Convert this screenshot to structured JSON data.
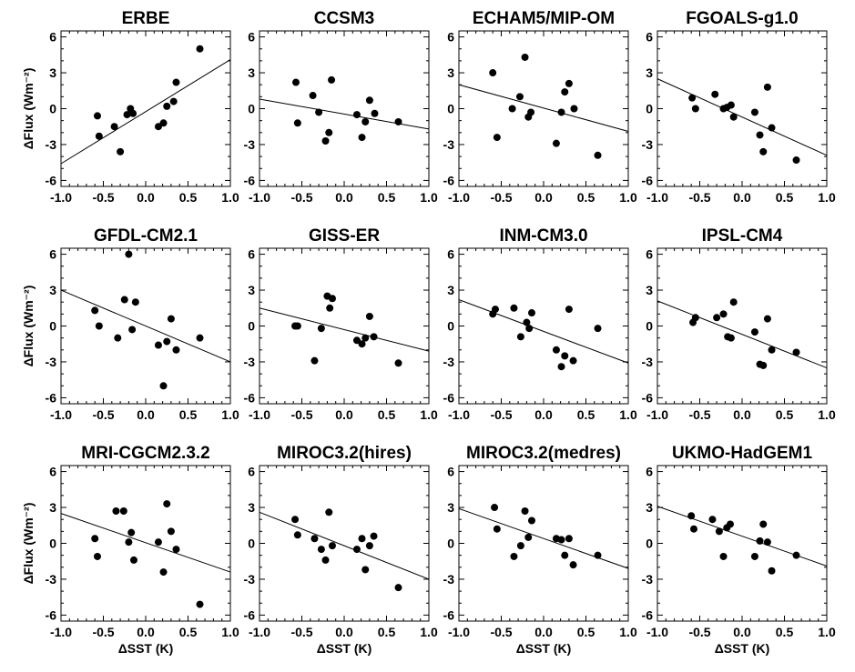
{
  "figure": {
    "xlabel": "ΔSST (K)",
    "ylabel": "ΔFlux (Wm⁻²)",
    "xticks": [
      "-1.0",
      "-0.5",
      "0.0",
      "0.5",
      "1.0"
    ],
    "yticks": [
      "6",
      "3",
      "0",
      "-3",
      "-6"
    ]
  },
  "chart_data": [
    {
      "type": "scatter",
      "title": "ERBE",
      "xlim": [
        -1,
        1
      ],
      "ylim": [
        -6.5,
        6.5
      ],
      "fit": [
        [
          -1,
          -4.6
        ],
        [
          1,
          4.1
        ]
      ],
      "points": [
        [
          -0.57,
          -0.6
        ],
        [
          -0.55,
          -2.3
        ],
        [
          -0.37,
          -1.5
        ],
        [
          -0.3,
          -3.6
        ],
        [
          -0.22,
          -0.5
        ],
        [
          -0.18,
          0.0
        ],
        [
          -0.15,
          -0.4
        ],
        [
          0.15,
          -1.5
        ],
        [
          0.21,
          -1.2
        ],
        [
          0.25,
          0.2
        ],
        [
          0.33,
          0.6
        ],
        [
          0.36,
          2.2
        ],
        [
          0.64,
          5.0
        ]
      ]
    },
    {
      "type": "scatter",
      "title": "CCSM3",
      "xlim": [
        -1,
        1
      ],
      "ylim": [
        -6.5,
        6.5
      ],
      "fit": [
        [
          -1,
          0.8
        ],
        [
          1,
          -1.7
        ]
      ],
      "points": [
        [
          -0.57,
          2.2
        ],
        [
          -0.55,
          -1.2
        ],
        [
          -0.37,
          1.1
        ],
        [
          -0.3,
          -0.3
        ],
        [
          -0.22,
          -2.7
        ],
        [
          -0.18,
          -2.0
        ],
        [
          -0.15,
          2.4
        ],
        [
          0.15,
          -0.5
        ],
        [
          0.21,
          -2.4
        ],
        [
          0.25,
          -1.1
        ],
        [
          0.3,
          0.7
        ],
        [
          0.36,
          -0.4
        ],
        [
          0.64,
          -1.1
        ]
      ]
    },
    {
      "type": "scatter",
      "title": "ECHAM5/MIP-OM",
      "xlim": [
        -1,
        1
      ],
      "ylim": [
        -6.5,
        6.5
      ],
      "fit": [
        [
          -1,
          2.0
        ],
        [
          1,
          -1.9
        ]
      ],
      "points": [
        [
          -0.6,
          3.0
        ],
        [
          -0.55,
          -2.4
        ],
        [
          -0.37,
          0.0
        ],
        [
          -0.28,
          1.0
        ],
        [
          -0.22,
          4.3
        ],
        [
          -0.18,
          -0.7
        ],
        [
          -0.15,
          -0.3
        ],
        [
          0.15,
          -2.9
        ],
        [
          0.21,
          -0.3
        ],
        [
          0.25,
          1.4
        ],
        [
          0.3,
          2.1
        ],
        [
          0.36,
          0.0
        ],
        [
          0.64,
          -3.9
        ]
      ]
    },
    {
      "type": "scatter",
      "title": "FGOALS-g1.0",
      "xlim": [
        -1,
        1
      ],
      "ylim": [
        -6.5,
        6.5
      ],
      "fit": [
        [
          -1,
          2.5
        ],
        [
          1,
          -3.9
        ]
      ],
      "points": [
        [
          -0.59,
          0.9
        ],
        [
          -0.55,
          0.0
        ],
        [
          -0.32,
          1.2
        ],
        [
          -0.22,
          0.0
        ],
        [
          -0.18,
          0.1
        ],
        [
          -0.13,
          0.3
        ],
        [
          -0.1,
          -0.7
        ],
        [
          0.15,
          -0.3
        ],
        [
          0.21,
          -2.2
        ],
        [
          0.25,
          -3.6
        ],
        [
          0.3,
          1.8
        ],
        [
          0.35,
          -1.6
        ],
        [
          0.64,
          -4.3
        ]
      ]
    },
    {
      "type": "scatter",
      "title": "GFDL-CM2.1",
      "xlim": [
        -1,
        1
      ],
      "ylim": [
        -6.5,
        6.5
      ],
      "fit": [
        [
          -1,
          3.0
        ],
        [
          1,
          -3.0
        ]
      ],
      "points": [
        [
          -0.6,
          1.3
        ],
        [
          -0.55,
          0.0
        ],
        [
          -0.33,
          -1.0
        ],
        [
          -0.25,
          2.2
        ],
        [
          -0.2,
          6.0
        ],
        [
          -0.16,
          -0.3
        ],
        [
          -0.12,
          2.0
        ],
        [
          0.15,
          -1.6
        ],
        [
          0.21,
          -5.0
        ],
        [
          0.25,
          -1.3
        ],
        [
          0.3,
          0.6
        ],
        [
          0.36,
          -2.0
        ],
        [
          0.64,
          -1.0
        ]
      ]
    },
    {
      "type": "scatter",
      "title": "GISS-ER",
      "xlim": [
        -1,
        1
      ],
      "ylim": [
        -6.5,
        6.5
      ],
      "fit": [
        [
          -1,
          1.5
        ],
        [
          1,
          -2.1
        ]
      ],
      "points": [
        [
          -0.58,
          0.0
        ],
        [
          -0.55,
          0.0
        ],
        [
          -0.35,
          -2.9
        ],
        [
          -0.27,
          -0.2
        ],
        [
          -0.2,
          2.5
        ],
        [
          -0.17,
          1.5
        ],
        [
          -0.14,
          2.3
        ],
        [
          0.15,
          -1.2
        ],
        [
          0.21,
          -1.5
        ],
        [
          0.25,
          -1.0
        ],
        [
          0.3,
          0.8
        ],
        [
          0.35,
          -0.9
        ],
        [
          0.64,
          -3.1
        ]
      ]
    },
    {
      "type": "scatter",
      "title": "INM-CM3.0",
      "xlim": [
        -1,
        1
      ],
      "ylim": [
        -6.5,
        6.5
      ],
      "fit": [
        [
          -1,
          2.2
        ],
        [
          1,
          -3.1
        ]
      ],
      "points": [
        [
          -0.6,
          1.0
        ],
        [
          -0.57,
          1.4
        ],
        [
          -0.35,
          1.5
        ],
        [
          -0.27,
          -0.9
        ],
        [
          -0.2,
          0.3
        ],
        [
          -0.17,
          -0.2
        ],
        [
          -0.14,
          1.1
        ],
        [
          0.15,
          -2.0
        ],
        [
          0.21,
          -3.4
        ],
        [
          0.25,
          -2.5
        ],
        [
          0.3,
          1.4
        ],
        [
          0.35,
          -2.9
        ],
        [
          0.64,
          -0.2
        ]
      ]
    },
    {
      "type": "scatter",
      "title": "IPSL-CM4",
      "xlim": [
        -1,
        1
      ],
      "ylim": [
        -6.5,
        6.5
      ],
      "fit": [
        [
          -1,
          2.1
        ],
        [
          1,
          -3.5
        ]
      ],
      "points": [
        [
          -0.58,
          0.3
        ],
        [
          -0.55,
          0.7
        ],
        [
          -0.3,
          0.7
        ],
        [
          -0.22,
          1.0
        ],
        [
          -0.17,
          -0.9
        ],
        [
          -0.13,
          -1.0
        ],
        [
          -0.1,
          2.0
        ],
        [
          0.15,
          -0.5
        ],
        [
          0.21,
          -3.2
        ],
        [
          0.25,
          -3.3
        ],
        [
          0.3,
          0.6
        ],
        [
          0.35,
          -2.0
        ],
        [
          0.64,
          -2.2
        ]
      ]
    },
    {
      "type": "scatter",
      "title": "MRI-CGCM2.3.2",
      "xlim": [
        -1,
        1
      ],
      "ylim": [
        -6.5,
        6.5
      ],
      "fit": [
        [
          -1,
          2.5
        ],
        [
          1,
          -2.4
        ]
      ],
      "points": [
        [
          -0.6,
          0.4
        ],
        [
          -0.57,
          -1.1
        ],
        [
          -0.35,
          2.7
        ],
        [
          -0.26,
          2.7
        ],
        [
          -0.2,
          0.1
        ],
        [
          -0.17,
          0.9
        ],
        [
          -0.14,
          -1.4
        ],
        [
          0.15,
          0.1
        ],
        [
          0.21,
          -2.4
        ],
        [
          0.25,
          3.3
        ],
        [
          0.3,
          1.0
        ],
        [
          0.36,
          -0.5
        ],
        [
          0.64,
          -5.1
        ]
      ]
    },
    {
      "type": "scatter",
      "title": "MIROC3.2(hires)",
      "xlim": [
        -1,
        1
      ],
      "ylim": [
        -6.5,
        6.5
      ],
      "fit": [
        [
          -1,
          2.6
        ],
        [
          1,
          -3.0
        ]
      ],
      "points": [
        [
          -0.58,
          2.0
        ],
        [
          -0.55,
          0.7
        ],
        [
          -0.35,
          0.4
        ],
        [
          -0.27,
          -0.5
        ],
        [
          -0.22,
          -1.4
        ],
        [
          -0.18,
          2.6
        ],
        [
          -0.14,
          -0.2
        ],
        [
          0.15,
          -0.5
        ],
        [
          0.21,
          0.4
        ],
        [
          0.25,
          -2.2
        ],
        [
          0.3,
          -0.2
        ],
        [
          0.35,
          0.6
        ],
        [
          0.64,
          -3.7
        ]
      ]
    },
    {
      "type": "scatter",
      "title": "MIROC3.2(medres)",
      "xlim": [
        -1,
        1
      ],
      "ylim": [
        -6.5,
        6.5
      ],
      "fit": [
        [
          -1,
          2.9
        ],
        [
          1,
          -2.1
        ]
      ],
      "points": [
        [
          -0.58,
          3.0
        ],
        [
          -0.55,
          1.2
        ],
        [
          -0.35,
          -1.1
        ],
        [
          -0.27,
          -0.2
        ],
        [
          -0.22,
          2.7
        ],
        [
          -0.18,
          0.5
        ],
        [
          -0.14,
          1.9
        ],
        [
          0.15,
          0.4
        ],
        [
          0.21,
          0.3
        ],
        [
          0.25,
          -1.0
        ],
        [
          0.3,
          0.4
        ],
        [
          0.35,
          -1.8
        ],
        [
          0.64,
          -1.0
        ]
      ]
    },
    {
      "type": "scatter",
      "title": "UKMO-HadGEM1",
      "xlim": [
        -1,
        1
      ],
      "ylim": [
        -6.5,
        6.5
      ],
      "fit": [
        [
          -1,
          3.1
        ],
        [
          1,
          -1.9
        ]
      ],
      "points": [
        [
          -0.6,
          2.3
        ],
        [
          -0.57,
          1.2
        ],
        [
          -0.35,
          2.0
        ],
        [
          -0.27,
          1.0
        ],
        [
          -0.22,
          -1.1
        ],
        [
          -0.18,
          1.3
        ],
        [
          -0.14,
          1.6
        ],
        [
          0.15,
          -1.1
        ],
        [
          0.21,
          0.2
        ],
        [
          0.25,
          1.6
        ],
        [
          0.3,
          0.1
        ],
        [
          0.35,
          -2.3
        ],
        [
          0.64,
          -1.0
        ]
      ]
    }
  ]
}
